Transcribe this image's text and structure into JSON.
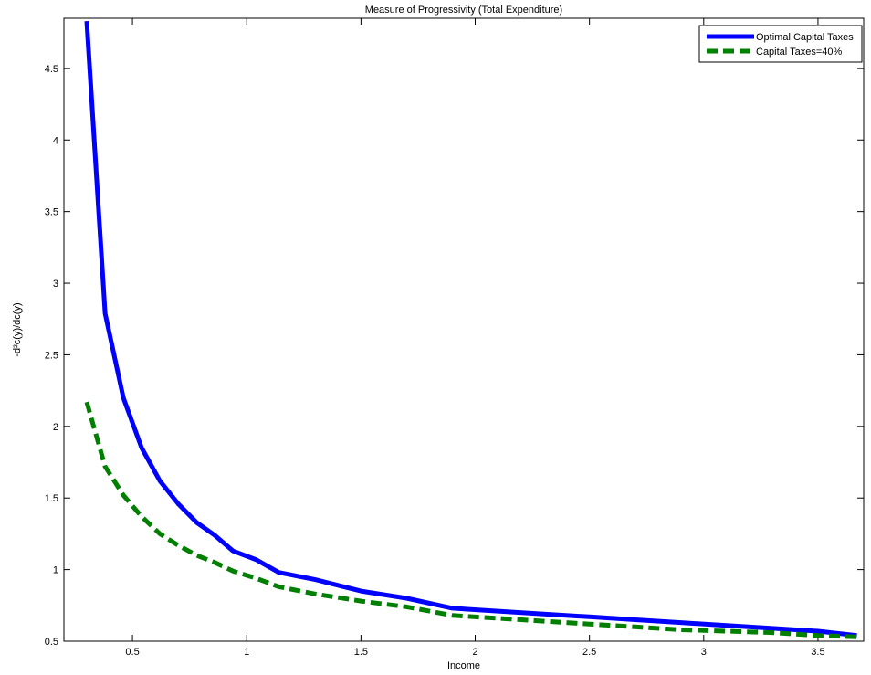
{
  "chart_data": {
    "type": "line",
    "title": "Measure of Progressivity (Total Expenditure)",
    "xlabel": "Income",
    "ylabel": "-d²c(y)/dc(y)",
    "xlim": [
      0.2,
      3.7
    ],
    "ylim": [
      0.5,
      4.85
    ],
    "xticks": [
      0.5,
      1,
      1.5,
      2,
      2.5,
      3,
      3.5
    ],
    "xtick_labels": [
      "0.5",
      "1",
      "1.5",
      "2",
      "2.5",
      "3",
      "3.5"
    ],
    "yticks": [
      0.5,
      1,
      1.5,
      2,
      2.5,
      3,
      3.5,
      4,
      4.5
    ],
    "ytick_labels": [
      "0.5",
      "1",
      "1.5",
      "2",
      "2.5",
      "3",
      "3.5",
      "4",
      "4.5"
    ],
    "grid": false,
    "legend_position": "top-right",
    "series": [
      {
        "name": "Optimal Capital Taxes",
        "color": "#0000ff",
        "dash": "solid",
        "x": [
          0.3,
          0.38,
          0.46,
          0.54,
          0.62,
          0.7,
          0.78,
          0.86,
          0.94,
          1.04,
          1.14,
          1.3,
          1.5,
          1.7,
          1.9,
          2.1,
          2.3,
          2.5,
          2.7,
          2.9,
          3.1,
          3.3,
          3.5,
          3.67
        ],
        "y": [
          4.83,
          2.79,
          2.2,
          1.85,
          1.62,
          1.46,
          1.33,
          1.24,
          1.13,
          1.07,
          0.98,
          0.93,
          0.85,
          0.8,
          0.73,
          0.71,
          0.69,
          0.67,
          0.65,
          0.63,
          0.61,
          0.59,
          0.57,
          0.54
        ]
      },
      {
        "name": "Capital Taxes=40%",
        "color": "#007f00",
        "dash": "dashed",
        "x": [
          0.3,
          0.38,
          0.46,
          0.54,
          0.62,
          0.7,
          0.78,
          0.86,
          0.94,
          1.04,
          1.14,
          1.3,
          1.5,
          1.7,
          1.9,
          2.1,
          2.3,
          2.5,
          2.7,
          2.9,
          3.1,
          3.3,
          3.5,
          3.67
        ],
        "y": [
          2.17,
          1.72,
          1.52,
          1.37,
          1.25,
          1.17,
          1.1,
          1.05,
          0.99,
          0.94,
          0.88,
          0.83,
          0.78,
          0.74,
          0.68,
          0.66,
          0.64,
          0.62,
          0.6,
          0.58,
          0.57,
          0.56,
          0.54,
          0.53
        ]
      }
    ]
  }
}
